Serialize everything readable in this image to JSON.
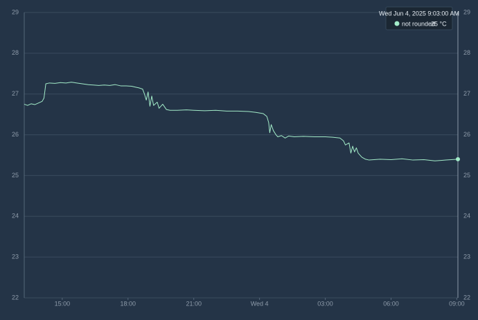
{
  "chart_data": {
    "type": "line",
    "x": [
      "13:16",
      "13:25",
      "13:35",
      "13:45",
      "13:55",
      "14:05",
      "14:10",
      "14:15",
      "14:25",
      "14:40",
      "14:55",
      "15:10",
      "15:25",
      "15:40",
      "15:55",
      "16:10",
      "16:25",
      "16:40",
      "16:55",
      "17:10",
      "17:25",
      "17:40",
      "17:55",
      "18:10",
      "18:20",
      "18:30",
      "18:40",
      "18:45",
      "18:50",
      "18:55",
      "19:00",
      "19:05",
      "19:10",
      "19:20",
      "19:25",
      "19:35",
      "19:45",
      "19:55",
      "20:15",
      "20:40",
      "21:00",
      "21:30",
      "22:00",
      "22:30",
      "23:00",
      "23:30",
      "23:50",
      "00:10",
      "00:20",
      "00:25",
      "00:28",
      "00:32",
      "00:38",
      "00:45",
      "00:50",
      "01:00",
      "01:10",
      "01:20",
      "01:35",
      "02:00",
      "02:30",
      "03:00",
      "03:20",
      "03:40",
      "03:50",
      "03:55",
      "04:05",
      "04:10",
      "04:15",
      "04:20",
      "04:25",
      "04:30",
      "04:40",
      "04:50",
      "05:00",
      "05:30",
      "06:00",
      "06:30",
      "07:00",
      "07:30",
      "08:00",
      "08:30",
      "09:03"
    ],
    "series": [
      {
        "name": "not rounded",
        "color": "#a3ecc9",
        "values": [
          26.75,
          26.72,
          26.76,
          26.74,
          26.78,
          26.82,
          26.9,
          27.25,
          27.27,
          27.26,
          27.28,
          27.27,
          27.29,
          27.27,
          27.25,
          27.23,
          27.22,
          27.21,
          27.22,
          27.21,
          27.23,
          27.2,
          27.2,
          27.19,
          27.17,
          27.15,
          27.12,
          27.0,
          26.85,
          27.05,
          26.7,
          26.95,
          26.72,
          26.8,
          26.65,
          26.75,
          26.62,
          26.6,
          26.6,
          26.61,
          26.6,
          26.59,
          26.6,
          26.58,
          26.58,
          26.57,
          26.55,
          26.52,
          26.45,
          26.3,
          26.05,
          26.25,
          26.1,
          26.0,
          25.95,
          25.98,
          25.92,
          25.97,
          25.95,
          25.96,
          25.95,
          25.95,
          25.94,
          25.92,
          25.85,
          25.75,
          25.8,
          25.55,
          25.72,
          25.58,
          25.68,
          25.55,
          25.45,
          25.4,
          25.38,
          25.4,
          25.39,
          25.41,
          25.38,
          25.39,
          25.36,
          25.38,
          25.4
        ]
      }
    ],
    "xlim": [
      "13:16",
      "09:03"
    ],
    "xticks": [
      "15:00",
      "18:00",
      "21:00",
      {
        "value": "00:00",
        "label": "Wed 4"
      },
      "03:00",
      "06:00",
      "09:00"
    ],
    "ylim": [
      22,
      29
    ],
    "yticks": [
      22,
      23,
      24,
      25,
      26,
      27,
      28,
      29
    ],
    "grid": true,
    "tooltip": {
      "title": "Wed Jun 4, 2025 9:03:00 AM",
      "value_label": "25 °C"
    }
  }
}
